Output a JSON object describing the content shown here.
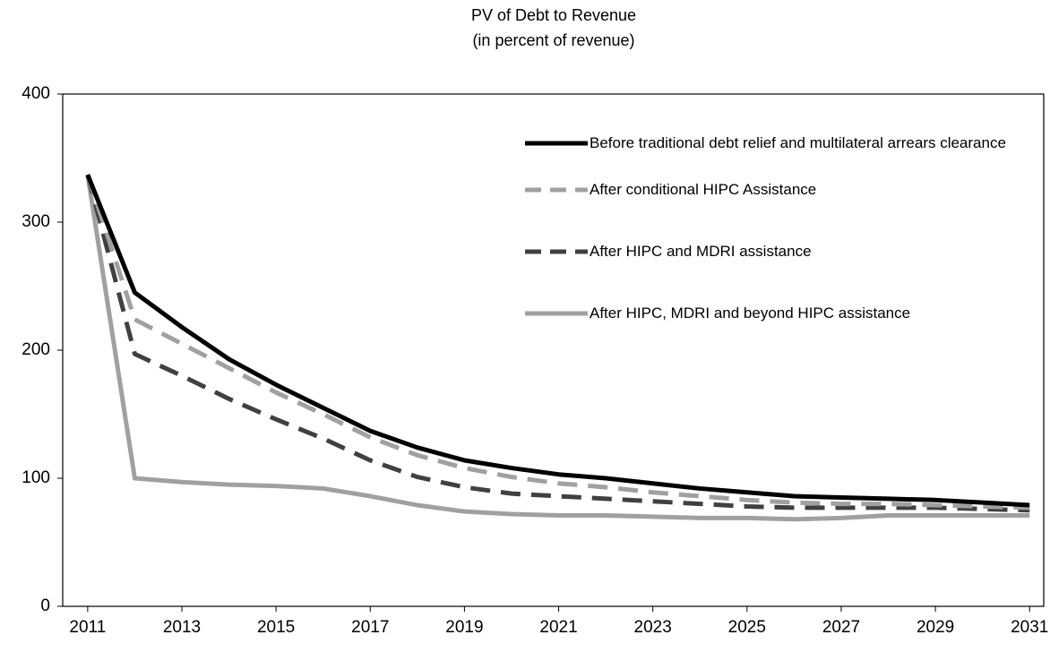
{
  "chart_data": {
    "type": "line",
    "title": "PV of Debt to Revenue",
    "subtitle": "(in percent of revenue)",
    "x": [
      2011,
      2012,
      2013,
      2014,
      2015,
      2016,
      2017,
      2018,
      2019,
      2020,
      2021,
      2022,
      2023,
      2024,
      2025,
      2026,
      2027,
      2028,
      2029,
      2030,
      2031
    ],
    "xlim": [
      2010.47,
      2031.3
    ],
    "xticks": [
      2011,
      2013,
      2015,
      2017,
      2019,
      2021,
      2023,
      2025,
      2027,
      2029,
      2031
    ],
    "ylim": [
      0,
      400
    ],
    "yticks": [
      0,
      100,
      200,
      300,
      400
    ],
    "grid": false,
    "legend": "top-right",
    "series": [
      {
        "name": "Before traditional debt relief and multilateral arrears clearance",
        "color": "#000000",
        "style": "solid",
        "values": [
          337,
          245,
          218,
          193,
          173,
          155,
          137,
          124,
          114,
          108,
          103,
          100,
          96,
          92,
          89,
          86,
          85,
          84,
          83,
          81,
          79
        ]
      },
      {
        "name": "After conditional HIPC Assistance",
        "color": "#a0a0a0",
        "style": "dashed",
        "values": [
          337,
          224,
          205,
          186,
          167,
          150,
          132,
          118,
          108,
          101,
          96,
          93,
          89,
          86,
          83,
          81,
          80,
          80,
          79,
          78,
          77
        ]
      },
      {
        "name": "After HIPC and MDRI assistance",
        "color": "#404040",
        "style": "dashed",
        "values": [
          337,
          197,
          180,
          162,
          146,
          131,
          114,
          101,
          93,
          88,
          86,
          84,
          82,
          80,
          78,
          77,
          77,
          77,
          77,
          76,
          75
        ]
      },
      {
        "name": "After HIPC, MDRI and beyond HIPC assistance",
        "color": "#a0a0a0",
        "style": "solid",
        "values": [
          337,
          100,
          97,
          95,
          94,
          92,
          86,
          79,
          74,
          72,
          71,
          71,
          70,
          69,
          69,
          68,
          69,
          71,
          71,
          71,
          71
        ]
      }
    ]
  }
}
